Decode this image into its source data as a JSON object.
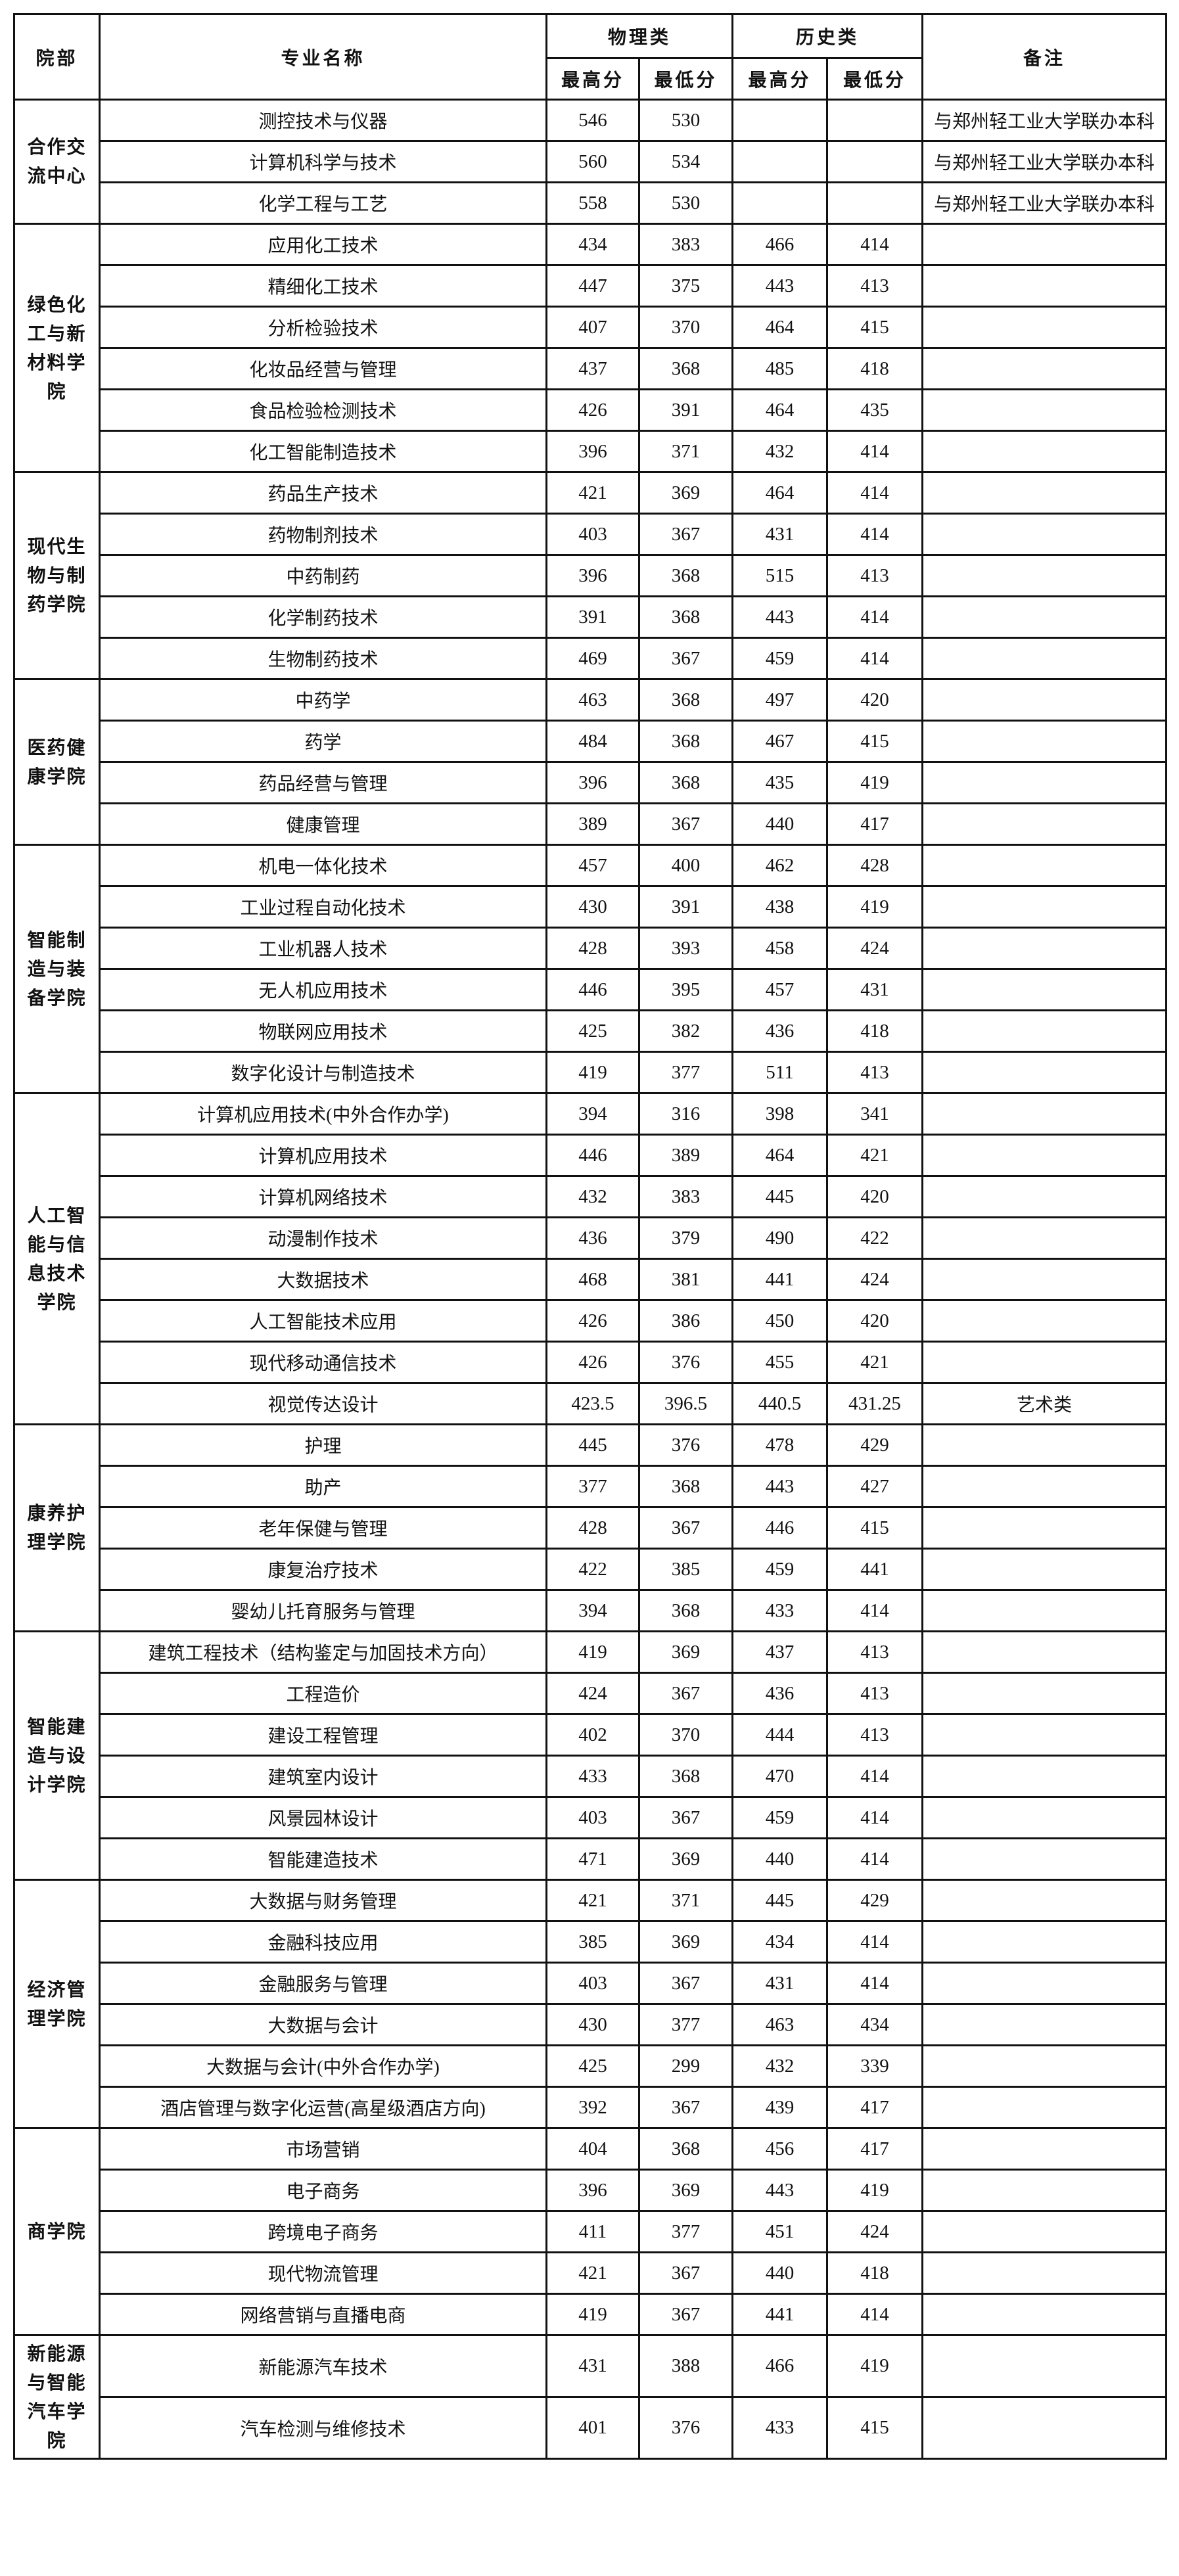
{
  "header": {
    "dept": "院部",
    "major": "专业名称",
    "physics": "物理类",
    "history": "历史类",
    "max": "最高分",
    "min": "最低分",
    "note": "备注"
  },
  "departments": [
    {
      "name": "合作交流中心",
      "rows": [
        {
          "major": "测控技术与仪器",
          "p_max": "546",
          "p_min": "530",
          "h_max": "",
          "h_min": "",
          "note": "与郑州轻工业大学联办本科"
        },
        {
          "major": "计算机科学与技术",
          "p_max": "560",
          "p_min": "534",
          "h_max": "",
          "h_min": "",
          "note": "与郑州轻工业大学联办本科"
        },
        {
          "major": "化学工程与工艺",
          "p_max": "558",
          "p_min": "530",
          "h_max": "",
          "h_min": "",
          "note": "与郑州轻工业大学联办本科"
        }
      ]
    },
    {
      "name": "绿色化工与新材料学院",
      "rows": [
        {
          "major": "应用化工技术",
          "p_max": "434",
          "p_min": "383",
          "h_max": "466",
          "h_min": "414",
          "note": ""
        },
        {
          "major": "精细化工技术",
          "p_max": "447",
          "p_min": "375",
          "h_max": "443",
          "h_min": "413",
          "note": ""
        },
        {
          "major": "分析检验技术",
          "p_max": "407",
          "p_min": "370",
          "h_max": "464",
          "h_min": "415",
          "note": ""
        },
        {
          "major": "化妆品经营与管理",
          "p_max": "437",
          "p_min": "368",
          "h_max": "485",
          "h_min": "418",
          "note": ""
        },
        {
          "major": "食品检验检测技术",
          "p_max": "426",
          "p_min": "391",
          "h_max": "464",
          "h_min": "435",
          "note": ""
        },
        {
          "major": "化工智能制造技术",
          "p_max": "396",
          "p_min": "371",
          "h_max": "432",
          "h_min": "414",
          "note": ""
        }
      ]
    },
    {
      "name": "现代生物与制药学院",
      "rows": [
        {
          "major": "药品生产技术",
          "p_max": "421",
          "p_min": "369",
          "h_max": "464",
          "h_min": "414",
          "note": ""
        },
        {
          "major": "药物制剂技术",
          "p_max": "403",
          "p_min": "367",
          "h_max": "431",
          "h_min": "414",
          "note": ""
        },
        {
          "major": "中药制药",
          "p_max": "396",
          "p_min": "368",
          "h_max": "515",
          "h_min": "413",
          "note": ""
        },
        {
          "major": "化学制药技术",
          "p_max": "391",
          "p_min": "368",
          "h_max": "443",
          "h_min": "414",
          "note": ""
        },
        {
          "major": "生物制药技术",
          "p_max": "469",
          "p_min": "367",
          "h_max": "459",
          "h_min": "414",
          "note": ""
        }
      ]
    },
    {
      "name": "医药健康学院",
      "rows": [
        {
          "major": "中药学",
          "p_max": "463",
          "p_min": "368",
          "h_max": "497",
          "h_min": "420",
          "note": ""
        },
        {
          "major": "药学",
          "p_max": "484",
          "p_min": "368",
          "h_max": "467",
          "h_min": "415",
          "note": ""
        },
        {
          "major": "药品经营与管理",
          "p_max": "396",
          "p_min": "368",
          "h_max": "435",
          "h_min": "419",
          "note": ""
        },
        {
          "major": "健康管理",
          "p_max": "389",
          "p_min": "367",
          "h_max": "440",
          "h_min": "417",
          "note": ""
        }
      ]
    },
    {
      "name": "智能制造与装备学院",
      "rows": [
        {
          "major": "机电一体化技术",
          "p_max": "457",
          "p_min": "400",
          "h_max": "462",
          "h_min": "428",
          "note": ""
        },
        {
          "major": "工业过程自动化技术",
          "p_max": "430",
          "p_min": "391",
          "h_max": "438",
          "h_min": "419",
          "note": ""
        },
        {
          "major": "工业机器人技术",
          "p_max": "428",
          "p_min": "393",
          "h_max": "458",
          "h_min": "424",
          "note": ""
        },
        {
          "major": "无人机应用技术",
          "p_max": "446",
          "p_min": "395",
          "h_max": "457",
          "h_min": "431",
          "note": ""
        },
        {
          "major": "物联网应用技术",
          "p_max": "425",
          "p_min": "382",
          "h_max": "436",
          "h_min": "418",
          "note": ""
        },
        {
          "major": "数字化设计与制造技术",
          "p_max": "419",
          "p_min": "377",
          "h_max": "511",
          "h_min": "413",
          "note": ""
        }
      ]
    },
    {
      "name": "人工智能与信息技术学院",
      "rows": [
        {
          "major": "计算机应用技术(中外合作办学)",
          "p_max": "394",
          "p_min": "316",
          "h_max": "398",
          "h_min": "341",
          "note": ""
        },
        {
          "major": "计算机应用技术",
          "p_max": "446",
          "p_min": "389",
          "h_max": "464",
          "h_min": "421",
          "note": ""
        },
        {
          "major": "计算机网络技术",
          "p_max": "432",
          "p_min": "383",
          "h_max": "445",
          "h_min": "420",
          "note": ""
        },
        {
          "major": "动漫制作技术",
          "p_max": "436",
          "p_min": "379",
          "h_max": "490",
          "h_min": "422",
          "note": ""
        },
        {
          "major": "大数据技术",
          "p_max": "468",
          "p_min": "381",
          "h_max": "441",
          "h_min": "424",
          "note": ""
        },
        {
          "major": "人工智能技术应用",
          "p_max": "426",
          "p_min": "386",
          "h_max": "450",
          "h_min": "420",
          "note": ""
        },
        {
          "major": "现代移动通信技术",
          "p_max": "426",
          "p_min": "376",
          "h_max": "455",
          "h_min": "421",
          "note": ""
        },
        {
          "major": "视觉传达设计",
          "p_max": "423.5",
          "p_min": "396.5",
          "h_max": "440.5",
          "h_min": "431.25",
          "note": "艺术类"
        }
      ]
    },
    {
      "name": "康养护理学院",
      "rows": [
        {
          "major": "护理",
          "p_max": "445",
          "p_min": "376",
          "h_max": "478",
          "h_min": "429",
          "note": ""
        },
        {
          "major": "助产",
          "p_max": "377",
          "p_min": "368",
          "h_max": "443",
          "h_min": "427",
          "note": ""
        },
        {
          "major": "老年保健与管理",
          "p_max": "428",
          "p_min": "367",
          "h_max": "446",
          "h_min": "415",
          "note": ""
        },
        {
          "major": "康复治疗技术",
          "p_max": "422",
          "p_min": "385",
          "h_max": "459",
          "h_min": "441",
          "note": ""
        },
        {
          "major": "婴幼儿托育服务与管理",
          "p_max": "394",
          "p_min": "368",
          "h_max": "433",
          "h_min": "414",
          "note": ""
        }
      ]
    },
    {
      "name": "智能建造与设计学院",
      "rows": [
        {
          "major": "建筑工程技术（结构鉴定与加固技术方向）",
          "p_max": "419",
          "p_min": "369",
          "h_max": "437",
          "h_min": "413",
          "note": ""
        },
        {
          "major": "工程造价",
          "p_max": "424",
          "p_min": "367",
          "h_max": "436",
          "h_min": "413",
          "note": ""
        },
        {
          "major": "建设工程管理",
          "p_max": "402",
          "p_min": "370",
          "h_max": "444",
          "h_min": "413",
          "note": ""
        },
        {
          "major": "建筑室内设计",
          "p_max": "433",
          "p_min": "368",
          "h_max": "470",
          "h_min": "414",
          "note": ""
        },
        {
          "major": "风景园林设计",
          "p_max": "403",
          "p_min": "367",
          "h_max": "459",
          "h_min": "414",
          "note": ""
        },
        {
          "major": "智能建造技术",
          "p_max": "471",
          "p_min": "369",
          "h_max": "440",
          "h_min": "414",
          "note": ""
        }
      ]
    },
    {
      "name": "经济管理学院",
      "rows": [
        {
          "major": "大数据与财务管理",
          "p_max": "421",
          "p_min": "371",
          "h_max": "445",
          "h_min": "429",
          "note": ""
        },
        {
          "major": "金融科技应用",
          "p_max": "385",
          "p_min": "369",
          "h_max": "434",
          "h_min": "414",
          "note": ""
        },
        {
          "major": "金融服务与管理",
          "p_max": "403",
          "p_min": "367",
          "h_max": "431",
          "h_min": "414",
          "note": ""
        },
        {
          "major": "大数据与会计",
          "p_max": "430",
          "p_min": "377",
          "h_max": "463",
          "h_min": "434",
          "note": ""
        },
        {
          "major": "大数据与会计(中外合作办学)",
          "p_max": "425",
          "p_min": "299",
          "h_max": "432",
          "h_min": "339",
          "note": ""
        },
        {
          "major": "酒店管理与数字化运营(高星级酒店方向)",
          "p_max": "392",
          "p_min": "367",
          "h_max": "439",
          "h_min": "417",
          "note": ""
        }
      ]
    },
    {
      "name": "商学院",
      "rows": [
        {
          "major": "市场营销",
          "p_max": "404",
          "p_min": "368",
          "h_max": "456",
          "h_min": "417",
          "note": ""
        },
        {
          "major": "电子商务",
          "p_max": "396",
          "p_min": "369",
          "h_max": "443",
          "h_min": "419",
          "note": ""
        },
        {
          "major": "跨境电子商务",
          "p_max": "411",
          "p_min": "377",
          "h_max": "451",
          "h_min": "424",
          "note": ""
        },
        {
          "major": "现代物流管理",
          "p_max": "421",
          "p_min": "367",
          "h_max": "440",
          "h_min": "418",
          "note": ""
        },
        {
          "major": "网络营销与直播电商",
          "p_max": "419",
          "p_min": "367",
          "h_max": "441",
          "h_min": "414",
          "note": ""
        }
      ]
    },
    {
      "name": "新能源与智能汽车学院",
      "rows": [
        {
          "major": "新能源汽车技术",
          "p_max": "431",
          "p_min": "388",
          "h_max": "466",
          "h_min": "419",
          "note": ""
        },
        {
          "major": "汽车检测与维修技术",
          "p_max": "401",
          "p_min": "376",
          "h_max": "433",
          "h_min": "415",
          "note": ""
        }
      ]
    }
  ]
}
